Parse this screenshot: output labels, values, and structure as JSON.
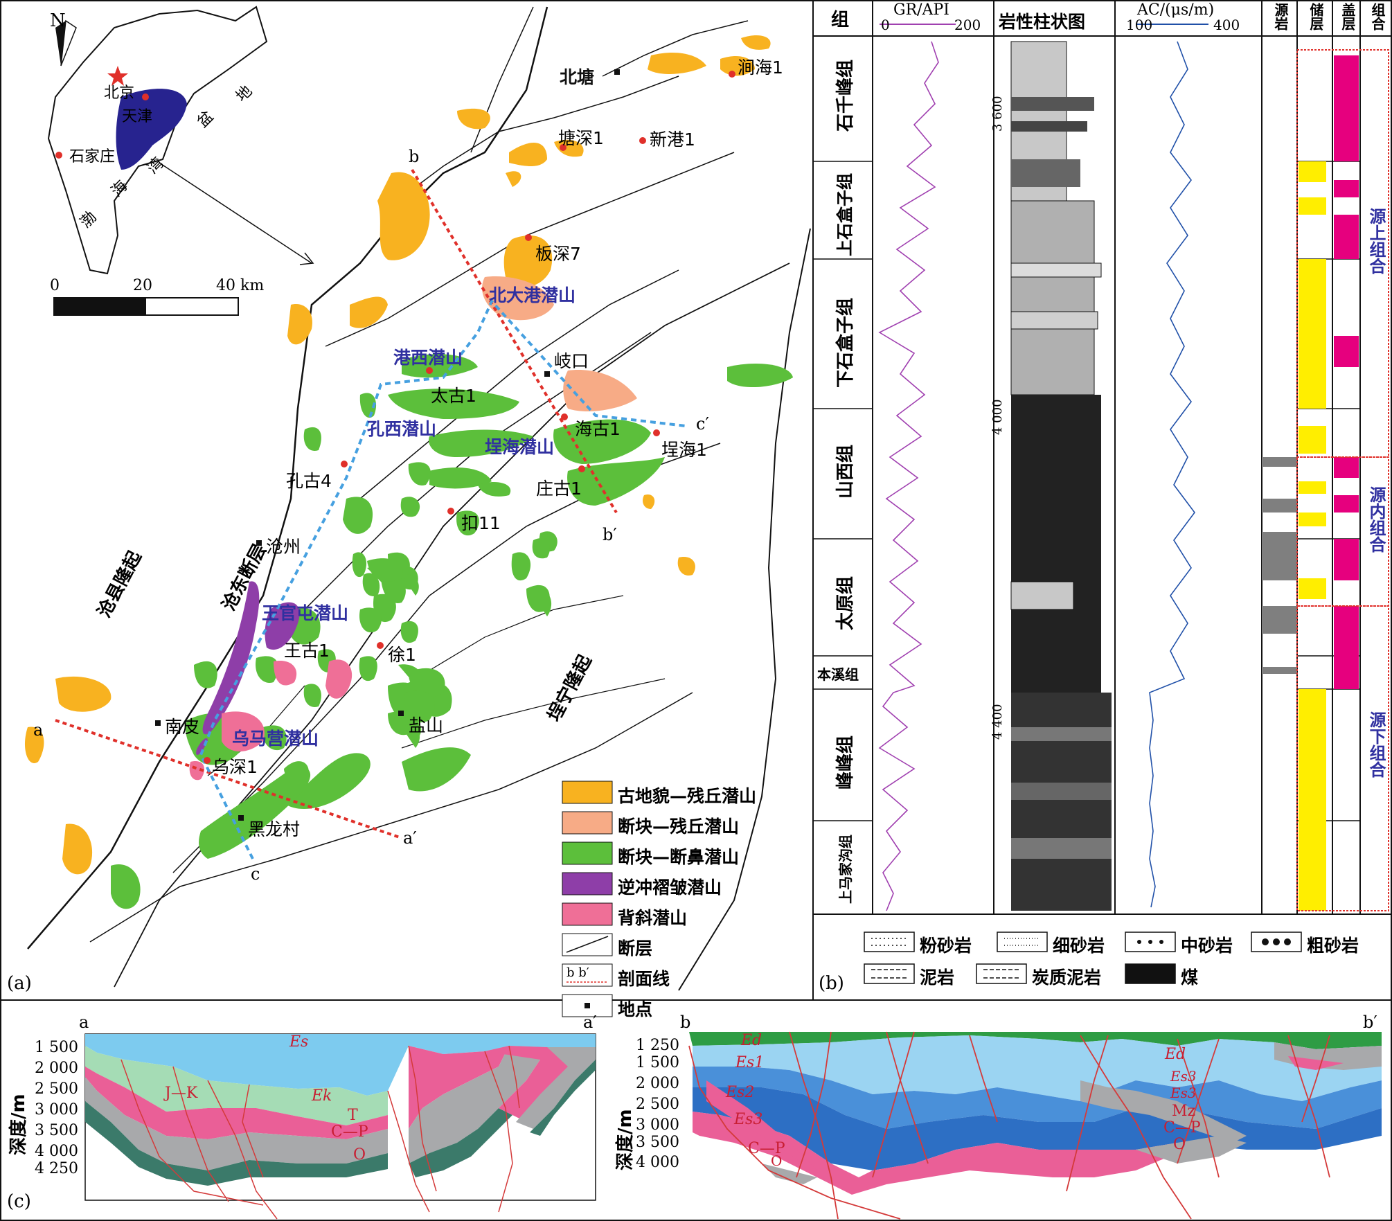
{
  "colors": {
    "relict_paleogeo": "#f8b220",
    "relict_faultblock": "#f7ab86",
    "faultnose": "#5cbf3b",
    "thrust": "#8e3ea8",
    "anticline": "#ef6f97",
    "fault": "#111111",
    "section_line": "#e0302a",
    "gr": "#a040b0",
    "ac": "#2050a8",
    "source": "#7f7f7f",
    "reservoir": "#ffee00",
    "caprock": "#e6007e",
    "es": "#7dcbef",
    "ek": "#a5dcb5",
    "pink": "#ea5f97",
    "gray": "#a8a9ab",
    "teal": "#3b7a6a",
    "ed": "#2e9c44",
    "es_light": "#9bd4f2",
    "es_mid": "#4a90d9",
    "es_dark": "#2d6fc4"
  },
  "panel_a": {
    "label": "(a)",
    "north": "N",
    "inset": {
      "beijing": "北京",
      "tianjin": "天津",
      "shijiazhuang": "石家庄",
      "bay": [
        "渤",
        "海",
        "湾"
      ],
      "basin": [
        "盆",
        "地"
      ]
    },
    "scale": {
      "ticks": [
        "0",
        "20",
        "40 km"
      ]
    },
    "places": {
      "beitang": "北塘",
      "jianhai1": "涧海1",
      "tangshen1": "塘深1",
      "xingang1": "新港1",
      "banshen7": "板深7",
      "qikou": "岐口",
      "taigu1": "太古1",
      "haigu1": "海古1",
      "chenghai1": "埕海1",
      "kong4": "孔古4",
      "zhuanggu1": "庄古1",
      "kou11": "扣11",
      "cangzhou": "沧州",
      "xu1": "徐1",
      "wanggu1": "王古1",
      "nanpi": "南皮",
      "yanshan": "盐山",
      "wushen1": "乌深1",
      "heilongcun": "黑龙村"
    },
    "buried_hills": {
      "bdg": "北大港潜山",
      "gx": "港西潜山",
      "kx": "孔西潜山",
      "ch": "埕海潜山",
      "wgt": "王官屯潜山",
      "wmy": "乌马营潜山"
    },
    "structures": {
      "cangxian": "沧县隆起",
      "cangdong": "沧东断层",
      "chengning": "埕宁隆起"
    },
    "section_letters": {
      "a": "a",
      "a2": "a′",
      "b": "b",
      "b2": "b′",
      "c": "c",
      "c2": "c′"
    },
    "legend": [
      {
        "label": "古地貌—残丘潜山"
      },
      {
        "label": "断块—残丘潜山"
      },
      {
        "label": "断块—断鼻潜山"
      },
      {
        "label": "逆冲褶皱潜山"
      },
      {
        "label": "背斜潜山"
      },
      {
        "label": "断层"
      },
      {
        "label": "剖面线",
        "sample": "b  b′"
      },
      {
        "label": "地点"
      }
    ]
  },
  "panel_b": {
    "label": "(b)",
    "headers": {
      "group": "组",
      "gr": "GR/API",
      "gr_min": "0",
      "gr_max": "200",
      "lith": "岩性柱状图",
      "ac": "AC/(μs/m)",
      "ac_min": "100",
      "ac_max": "400",
      "source": "源岩",
      "reservoir": "储层",
      "caprock": "盖层",
      "assemblage": "组合"
    },
    "formations": [
      "石千峰组",
      "上石盒子组",
      "下石盒子组",
      "山西组",
      "太原组",
      "本溪组",
      "峰峰组",
      "上马家沟组"
    ],
    "depths": [
      "3 600",
      "4 000",
      "4 400"
    ],
    "assemblages": [
      "源上组合",
      "源内组合",
      "源下组合"
    ],
    "lith_legend": [
      "粉砂岩",
      "细砂岩",
      "中砂岩",
      "粗砂岩",
      "泥岩",
      "炭质泥岩",
      "煤"
    ]
  },
  "panel_c": {
    "label": "(c)",
    "axis_title": "深度/m",
    "left": {
      "start": "a",
      "end": "a′",
      "ticks": [
        "1 500",
        "2 000",
        "2 500",
        "3 000",
        "3 500",
        "4 000",
        "4 250"
      ],
      "units": {
        "es": "Es",
        "ek": "Ek",
        "jk": "J—K",
        "t": "T",
        "cp": "C—P",
        "o": "O"
      }
    },
    "right": {
      "start": "b",
      "end": "b′",
      "ticks": [
        "1 250",
        "1 500",
        "2 000",
        "2 500",
        "3 000",
        "3 500",
        "4 000"
      ],
      "units": {
        "ed": "Ed",
        "es1": "Es1",
        "es2": "Es2",
        "es3": "Es3",
        "cp": "C—P",
        "o": "O",
        "ed_r": "Ed",
        "es3_r": "Es3",
        "es3b_r": "Es3",
        "mz": "Mz",
        "cp_r": "C—P",
        "o_r": "O"
      }
    }
  }
}
